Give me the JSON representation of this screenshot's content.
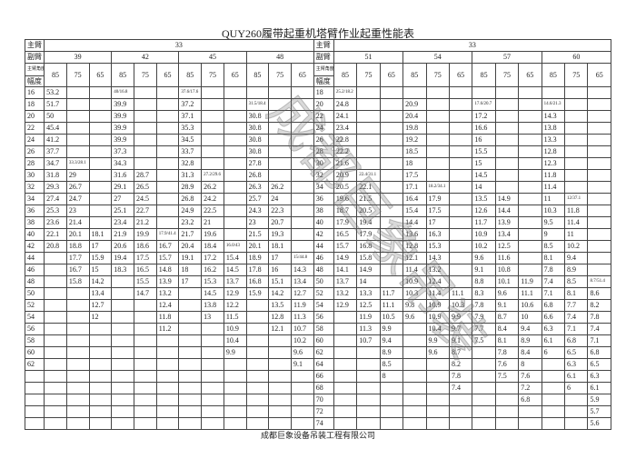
{
  "title": "QUY260履带起重机塔臂作业起重性能表",
  "watermark": "成都巨象吊装",
  "footer": "成都巨象设备吊装工程有限公司",
  "sections": [
    {
      "main_label": "主臂",
      "main": "33",
      "jib_label": "副臂",
      "angle_label": "主臂角度",
      "radius_label": "幅度",
      "jibs": [
        {
          "name": "39",
          "angles": [
            "85",
            "75",
            "65"
          ]
        },
        {
          "name": "42",
          "angles": [
            "85",
            "75",
            "65"
          ]
        },
        {
          "name": "45",
          "angles": [
            "85",
            "75",
            "65"
          ]
        },
        {
          "name": "48",
          "angles": [
            "85",
            "75",
            "65"
          ]
        }
      ],
      "rows": [
        {
          "radius": "16",
          "values": [
            "53.2",
            "",
            "",
            "40/16.8",
            "",
            "",
            "37.6/17.6",
            "",
            "",
            "",
            "",
            ""
          ]
        },
        {
          "radius": "18",
          "values": [
            "51.7",
            "",
            "",
            "39.9",
            "",
            "",
            "37.2",
            "",
            "",
            "31.5/18.4",
            "",
            ""
          ]
        },
        {
          "radius": "20",
          "values": [
            "50",
            "",
            "",
            "39.9",
            "",
            "",
            "37.1",
            "",
            "",
            "30.8",
            "",
            ""
          ]
        },
        {
          "radius": "22",
          "values": [
            "45.4",
            "",
            "",
            "39.9",
            "",
            "",
            "35.3",
            "",
            "",
            "30.8",
            "",
            ""
          ]
        },
        {
          "radius": "24",
          "values": [
            "41.2",
            "",
            "",
            "39.9",
            "",
            "",
            "34.5",
            "",
            "",
            "30.8",
            "",
            ""
          ]
        },
        {
          "radius": "26",
          "values": [
            "37.7",
            "",
            "",
            "37.3",
            "",
            "",
            "33.7",
            "",
            "",
            "30.8",
            "",
            ""
          ]
        },
        {
          "radius": "28",
          "values": [
            "34.7",
            "33.3/28.1",
            "",
            "34.3",
            "",
            "",
            "32.8",
            "",
            "",
            "27.8",
            "",
            ""
          ]
        },
        {
          "radius": "30",
          "values": [
            "31.8",
            "29",
            "",
            "31.6",
            "28.7",
            "",
            "31.3",
            "27.2/29.6",
            "",
            "26.8",
            "",
            ""
          ]
        },
        {
          "radius": "32",
          "values": [
            "29.3",
            "26.7",
            "",
            "29.1",
            "26.5",
            "",
            "28.9",
            "26.2",
            "",
            "26.3",
            "26.2",
            ""
          ]
        },
        {
          "radius": "34",
          "values": [
            "27.4",
            "24.7",
            "",
            "27",
            "24.5",
            "",
            "26.8",
            "24.2",
            "",
            "25.7",
            "24",
            ""
          ]
        },
        {
          "radius": "36",
          "values": [
            "25.3",
            "23",
            "",
            "25.1",
            "22.7",
            "",
            "24.9",
            "22.5",
            "",
            "24.3",
            "22.3",
            ""
          ]
        },
        {
          "radius": "38",
          "values": [
            "23.6",
            "21.4",
            "",
            "23.4",
            "21.2",
            "",
            "23.2",
            "21",
            "",
            "23",
            "20.7",
            ""
          ]
        },
        {
          "radius": "40",
          "values": [
            "22.1",
            "20.1",
            "18.1",
            "21.9",
            "19.9",
            "17.9/41.4",
            "21.7",
            "19.6",
            "",
            "21.5",
            "19.3",
            ""
          ]
        },
        {
          "radius": "42",
          "values": [
            "20.8",
            "18.8",
            "17",
            "20.6",
            "18.6",
            "16.7",
            "20.4",
            "18.4",
            "16.0/43",
            "20.1",
            "18.1",
            ""
          ]
        },
        {
          "radius": "44",
          "values": [
            "",
            "17.7",
            "15.9",
            "19.4",
            "17.5",
            "15.7",
            "19.1",
            "17.2",
            "15.4",
            "18.9",
            "17",
            "15/44.8"
          ]
        },
        {
          "radius": "46",
          "values": [
            "",
            "16.7",
            "15",
            "18.3",
            "16.5",
            "14.8",
            "18",
            "16.2",
            "14.5",
            "17.8",
            "16",
            "14.3"
          ]
        },
        {
          "radius": "48",
          "values": [
            "",
            "15.8",
            "14.2",
            "",
            "15.5",
            "13.9",
            "17",
            "15.3",
            "13.7",
            "16.8",
            "15.1",
            "13.4"
          ]
        },
        {
          "radius": "50",
          "values": [
            "",
            "",
            "13.4",
            "",
            "14.7",
            "13.2",
            "",
            "14.5",
            "12.9",
            "15.9",
            "14.2",
            "12.7"
          ]
        },
        {
          "radius": "52",
          "values": [
            "",
            "",
            "12.7",
            "",
            "",
            "12.4",
            "",
            "13.8",
            "12.2",
            "",
            "13.5",
            "11.9"
          ]
        },
        {
          "radius": "54",
          "values": [
            "",
            "",
            "12",
            "",
            "",
            "11.8",
            "",
            "13",
            "11.5",
            "",
            "12.8",
            "11.3"
          ]
        },
        {
          "radius": "56",
          "values": [
            "",
            "",
            "",
            "",
            "",
            "11.2",
            "",
            "",
            "10.9",
            "",
            "12.1",
            "10.7"
          ]
        },
        {
          "radius": "58",
          "values": [
            "",
            "",
            "",
            "",
            "",
            "",
            "",
            "",
            "10.4",
            "",
            "",
            "10.2"
          ]
        },
        {
          "radius": "60",
          "values": [
            "",
            "",
            "",
            "",
            "",
            "",
            "",
            "",
            "9.9",
            "",
            "",
            "9.6"
          ]
        },
        {
          "radius": "62",
          "values": [
            "",
            "",
            "",
            "",
            "",
            "",
            "",
            "",
            "",
            "",
            "",
            "9.1"
          ]
        }
      ]
    },
    {
      "main_label": "主臂",
      "main": "33",
      "jib_label": "副臂",
      "angle_label": "主臂角度",
      "radius_label": "幅度",
      "jibs": [
        {
          "name": "51",
          "angles": [
            "85",
            "75",
            "65"
          ]
        },
        {
          "name": "54",
          "angles": [
            "85",
            "75",
            "65"
          ]
        },
        {
          "name": "57",
          "angles": [
            "85",
            "75",
            "65"
          ]
        },
        {
          "name": "60",
          "angles": [
            "85",
            "75",
            "65"
          ]
        }
      ],
      "rows": [
        {
          "radius": "18",
          "values": [
            "25.2/18.2",
            "",
            "",
            "",
            "",
            "",
            "",
            "",
            "",
            "",
            "",
            ""
          ]
        },
        {
          "radius": "20",
          "values": [
            "24.8",
            "",
            "",
            "20.9",
            "",
            "",
            "17.6/20.7",
            "",
            "",
            "14.6/21.3",
            "",
            ""
          ]
        },
        {
          "radius": "22",
          "values": [
            "24.1",
            "",
            "",
            "20.4",
            "",
            "",
            "17.2",
            "",
            "",
            "14.3",
            "",
            ""
          ]
        },
        {
          "radius": "24",
          "values": [
            "23.4",
            "",
            "",
            "19.8",
            "",
            "",
            "16.6",
            "",
            "",
            "13.8",
            "",
            ""
          ]
        },
        {
          "radius": "26",
          "values": [
            "22.8",
            "",
            "",
            "19.2",
            "",
            "",
            "16",
            "",
            "",
            "13.3",
            "",
            ""
          ]
        },
        {
          "radius": "28",
          "values": [
            "22.2",
            "",
            "",
            "18.5",
            "",
            "",
            "15.5",
            "",
            "",
            "12.8",
            "",
            ""
          ]
        },
        {
          "radius": "30",
          "values": [
            "21.6",
            "",
            "",
            "18",
            "",
            "",
            "15",
            "",
            "",
            "12.3",
            "",
            ""
          ]
        },
        {
          "radius": "32",
          "values": [
            "20.9",
            "22.4/31.1",
            "",
            "17.5",
            "",
            "",
            "14.5",
            "",
            "",
            "11.8",
            "",
            ""
          ]
        },
        {
          "radius": "34",
          "values": [
            "20.5",
            "22.1",
            "",
            "17.1",
            "18.2/34.1",
            "",
            "14",
            "",
            "",
            "11.4",
            "",
            ""
          ]
        },
        {
          "radius": "36",
          "values": [
            "19.6",
            "21.5",
            "",
            "16.4",
            "17.9",
            "",
            "13.5",
            "14.9",
            "",
            "11",
            "12/37.1",
            ""
          ]
        },
        {
          "radius": "38",
          "values": [
            "18.7",
            "20.5",
            "",
            "15.4",
            "17.5",
            "",
            "12.6",
            "14.4",
            "",
            "10.3",
            "11.8",
            ""
          ]
        },
        {
          "radius": "40",
          "values": [
            "17.9",
            "19.4",
            "",
            "14.4",
            "17",
            "",
            "11.7",
            "13.9",
            "",
            "9.5",
            "11.4",
            ""
          ]
        },
        {
          "radius": "42",
          "values": [
            "16.5",
            "17.9",
            "",
            "13.6",
            "16.3",
            "",
            "10.9",
            "13.4",
            "",
            "9",
            "11",
            ""
          ]
        },
        {
          "radius": "44",
          "values": [
            "15.7",
            "16.8",
            "",
            "12.8",
            "15.3",
            "",
            "10.2",
            "12.5",
            "",
            "8.5",
            "10.2",
            ""
          ]
        },
        {
          "radius": "46",
          "values": [
            "14.9",
            "15.8",
            "",
            "12.1",
            "14.3",
            "",
            "9.6",
            "11.6",
            "",
            "8.1",
            "9.4",
            ""
          ]
        },
        {
          "radius": "48",
          "values": [
            "14.1",
            "14.9",
            "",
            "11.4",
            "13.2",
            "",
            "9.1",
            "10.8",
            "",
            "7.8",
            "8.9",
            ""
          ]
        },
        {
          "radius": "50",
          "values": [
            "13.7",
            "14",
            "",
            "10.9",
            "12.4",
            "",
            "8.8",
            "10.1",
            "11.9",
            "7.4",
            "8.5",
            "8.7/51.4"
          ]
        },
        {
          "radius": "52",
          "values": [
            "13.2",
            "13.3",
            "11.7",
            "10.3",
            "11.4",
            "11.1",
            "8.3",
            "9.6",
            "11.1",
            "7.1",
            "8.1",
            "8.6"
          ]
        },
        {
          "radius": "54",
          "values": [
            "12.9",
            "12.5",
            "11.1",
            "9.8",
            "10.9",
            "10.3",
            "7.8",
            "9.1",
            "10.6",
            "6.8",
            "7.7",
            "8.2"
          ]
        },
        {
          "radius": "56",
          "values": [
            "",
            "11.9",
            "10.5",
            "9.6",
            "10.9",
            "9.9",
            "7.9",
            "8.7",
            "10",
            "6.6",
            "7.4",
            "7.8"
          ]
        },
        {
          "radius": "58",
          "values": [
            "",
            "11.3",
            "9.9",
            "",
            "10.4",
            "9.7",
            "7.7",
            "8.4",
            "9.4",
            "6.3",
            "7.1",
            "7.4"
          ]
        },
        {
          "radius": "60",
          "values": [
            "",
            "10.7",
            "9.4",
            "",
            "9.9",
            "9.1",
            "7.5",
            "8.1",
            "8.9",
            "6.1",
            "6.8",
            "7.1"
          ]
        },
        {
          "radius": "62",
          "values": [
            "",
            "",
            "8.9",
            "",
            "9.6",
            "8.7",
            "",
            "7.8",
            "8.4",
            "6",
            "6.5",
            "6.8"
          ]
        },
        {
          "radius": "64",
          "values": [
            "",
            "",
            "8.5",
            "",
            "",
            "8.2",
            "",
            "7.6",
            "8",
            "",
            "6.3",
            "6.5"
          ]
        },
        {
          "radius": "66",
          "values": [
            "",
            "",
            "8",
            "",
            "",
            "7.8",
            "",
            "7.5",
            "7.6",
            "",
            "6.1",
            "6.3"
          ]
        },
        {
          "radius": "68",
          "values": [
            "",
            "",
            "",
            "",
            "",
            "7.4",
            "",
            "",
            "7.2",
            "",
            "6",
            "6.1"
          ]
        },
        {
          "radius": "70",
          "values": [
            "",
            "",
            "",
            "",
            "",
            "",
            "",
            "",
            "6.8",
            "",
            "",
            "5.9"
          ]
        },
        {
          "radius": "72",
          "values": [
            "",
            "",
            "",
            "",
            "",
            "",
            "",
            "",
            "",
            "",
            "",
            "5.7"
          ]
        },
        {
          "radius": "74",
          "values": [
            "",
            "",
            "",
            "",
            "",
            "",
            "",
            "",
            "",
            "",
            "",
            "5.6"
          ]
        }
      ]
    }
  ]
}
